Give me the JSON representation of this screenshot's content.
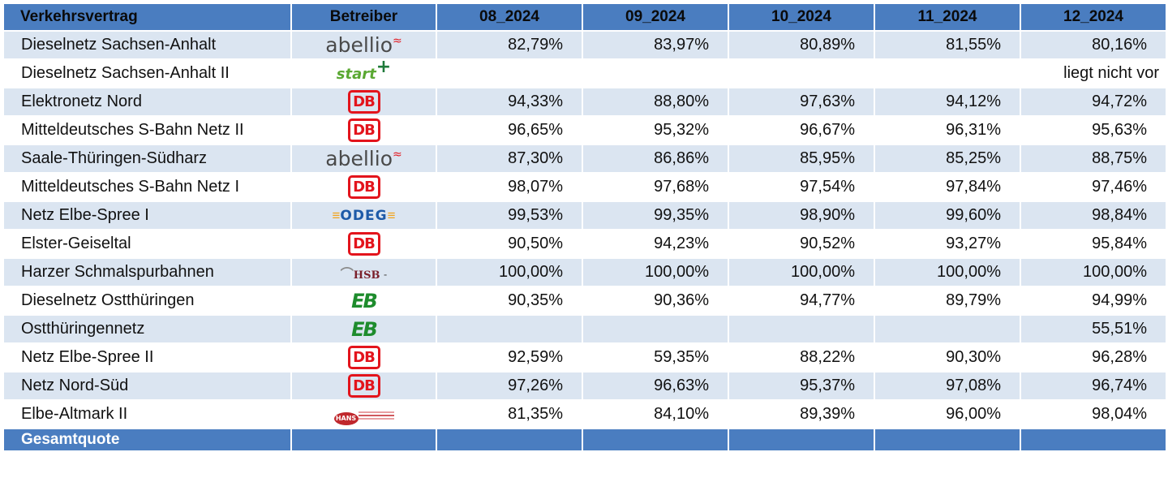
{
  "header": {
    "contract": "Verkehrsvertrag",
    "operator": "Betreiber",
    "months": [
      "08_2024",
      "09_2024",
      "10_2024",
      "11_2024",
      "12_2024"
    ]
  },
  "rows": [
    {
      "contract": "Dieselnetz Sachsen-Anhalt",
      "operator_logo": "abellio-logo",
      "logo_text": "abellio",
      "values": [
        "82,79%",
        "83,97%",
        "80,89%",
        "81,55%",
        "80,16%"
      ]
    },
    {
      "contract": "Dieselnetz Sachsen-Anhalt II",
      "operator_logo": "start-logo",
      "logo_text": "start",
      "values": [
        "",
        "",
        "",
        "",
        "liegt nicht vor"
      ]
    },
    {
      "contract": "Elektronetz Nord",
      "operator_logo": "db-logo",
      "logo_text": "DB",
      "values": [
        "94,33%",
        "88,80%",
        "97,63%",
        "94,12%",
        "94,72%"
      ]
    },
    {
      "contract": "Mitteldeutsches S-Bahn Netz II",
      "operator_logo": "db-logo",
      "logo_text": "DB",
      "values": [
        "96,65%",
        "95,32%",
        "96,67%",
        "96,31%",
        "95,63%"
      ]
    },
    {
      "contract": "Saale-Thüringen-Südharz",
      "operator_logo": "abellio-logo",
      "logo_text": "abellio",
      "values": [
        "87,30%",
        "86,86%",
        "85,95%",
        "85,25%",
        "88,75%"
      ]
    },
    {
      "contract": "Mitteldeutsches S-Bahn Netz I",
      "operator_logo": "db-logo",
      "logo_text": "DB",
      "values": [
        "98,07%",
        "97,68%",
        "97,54%",
        "97,84%",
        "97,46%"
      ]
    },
    {
      "contract": "Netz Elbe-Spree I",
      "operator_logo": "odeg-logo",
      "logo_text": "ODEG",
      "values": [
        "99,53%",
        "99,35%",
        "98,90%",
        "99,60%",
        "98,84%"
      ]
    },
    {
      "contract": "Elster-Geiseltal",
      "operator_logo": "db-logo",
      "logo_text": "DB",
      "values": [
        "90,50%",
        "94,23%",
        "90,52%",
        "93,27%",
        "95,84%"
      ]
    },
    {
      "contract": "Harzer Schmalspurbahnen",
      "operator_logo": "hsb-logo",
      "logo_text": "HSB",
      "values": [
        "100,00%",
        "100,00%",
        "100,00%",
        "100,00%",
        "100,00%"
      ]
    },
    {
      "contract": "Dieselnetz Ostthüringen",
      "operator_logo": "eb-logo",
      "logo_text": "EB",
      "values": [
        "90,35%",
        "90,36%",
        "94,77%",
        "89,79%",
        "94,99%"
      ]
    },
    {
      "contract": "Ostthüringennetz",
      "operator_logo": "eb-logo",
      "logo_text": "EB",
      "values": [
        "",
        "",
        "",
        "",
        "55,51%"
      ]
    },
    {
      "contract": "Netz Elbe-Spree II",
      "operator_logo": "db-logo",
      "logo_text": "DB",
      "values": [
        "92,59%",
        "59,35%",
        "88,22%",
        "90,30%",
        "96,28%"
      ]
    },
    {
      "contract": "Netz Nord-Süd",
      "operator_logo": "db-logo",
      "logo_text": "DB",
      "values": [
        "97,26%",
        "96,63%",
        "95,37%",
        "97,08%",
        "96,74%"
      ]
    },
    {
      "contract": "Elbe-Altmark II",
      "operator_logo": "hans-logo",
      "logo_text": "HANS",
      "values": [
        "81,35%",
        "84,10%",
        "89,39%",
        "96,00%",
        "98,04%"
      ]
    }
  ],
  "footer": {
    "label": "Gesamtquote",
    "values": [
      "",
      "",
      "",
      "",
      ""
    ]
  },
  "colors": {
    "header_bg": "#4a7dc0",
    "row_shade": "#dbe5f1",
    "db_red": "#e3141c"
  }
}
